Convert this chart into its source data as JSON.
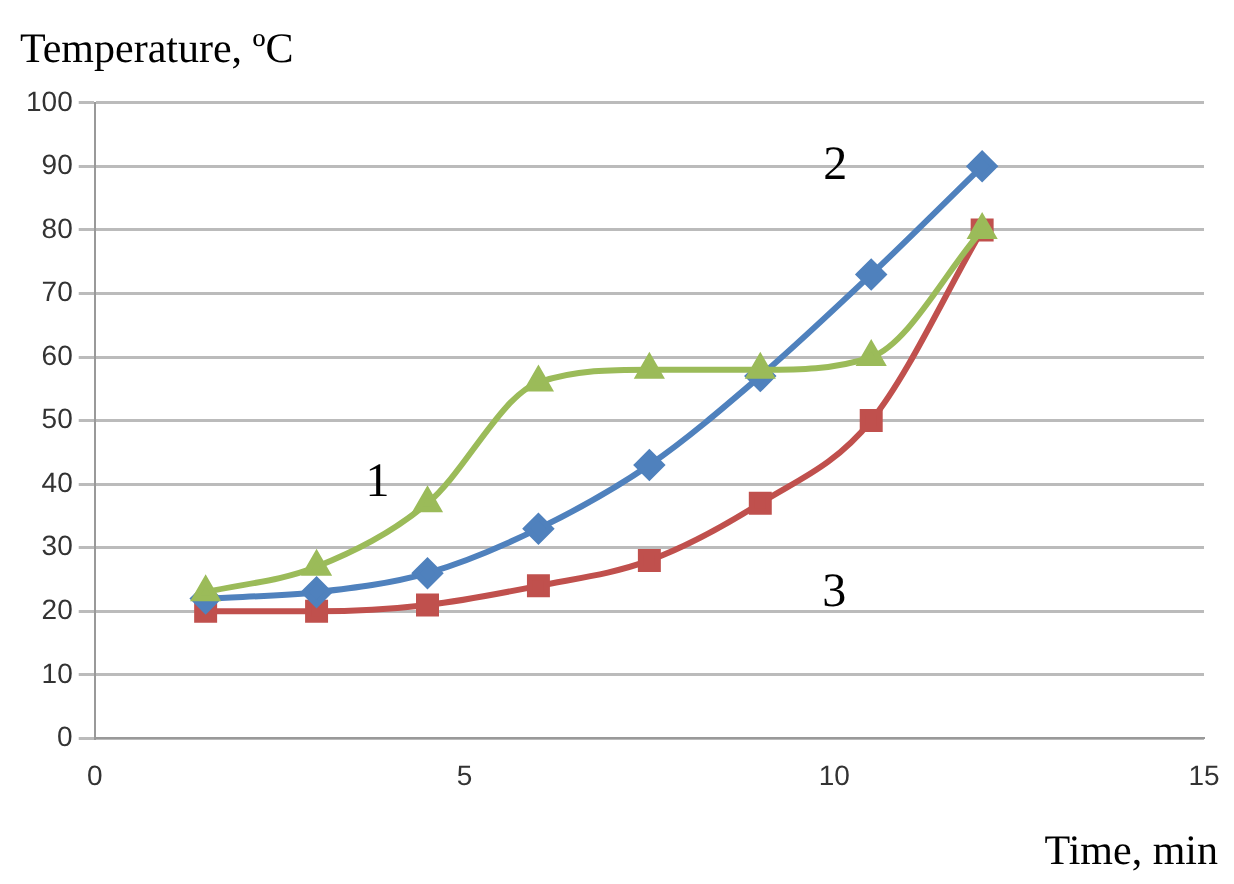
{
  "chart_data": {
    "type": "line",
    "ylabel": "Temperature, ºC",
    "xlabel": "Time, min",
    "x": [
      1.5,
      3,
      4.5,
      6,
      7.5,
      9,
      10.5,
      12
    ],
    "series": [
      {
        "name": "1",
        "color": "#9bbb59",
        "marker": "triangle",
        "values": [
          23,
          27,
          37,
          56,
          58,
          58,
          60,
          80
        ]
      },
      {
        "name": "2",
        "color": "#4f81bd",
        "marker": "diamond",
        "values": [
          22,
          23,
          26,
          33,
          43,
          57,
          73,
          90
        ]
      },
      {
        "name": "3",
        "color": "#c0504d",
        "marker": "square",
        "values": [
          20,
          20,
          21,
          24,
          28,
          37,
          50,
          80
        ]
      }
    ],
    "xlim": [
      0,
      15
    ],
    "xticks": [
      0,
      5,
      10,
      15
    ],
    "ylim": [
      0,
      100
    ],
    "yticks": [
      0,
      10,
      20,
      30,
      40,
      50,
      60,
      70,
      80,
      90,
      100
    ],
    "grid": "y",
    "legend": false
  }
}
